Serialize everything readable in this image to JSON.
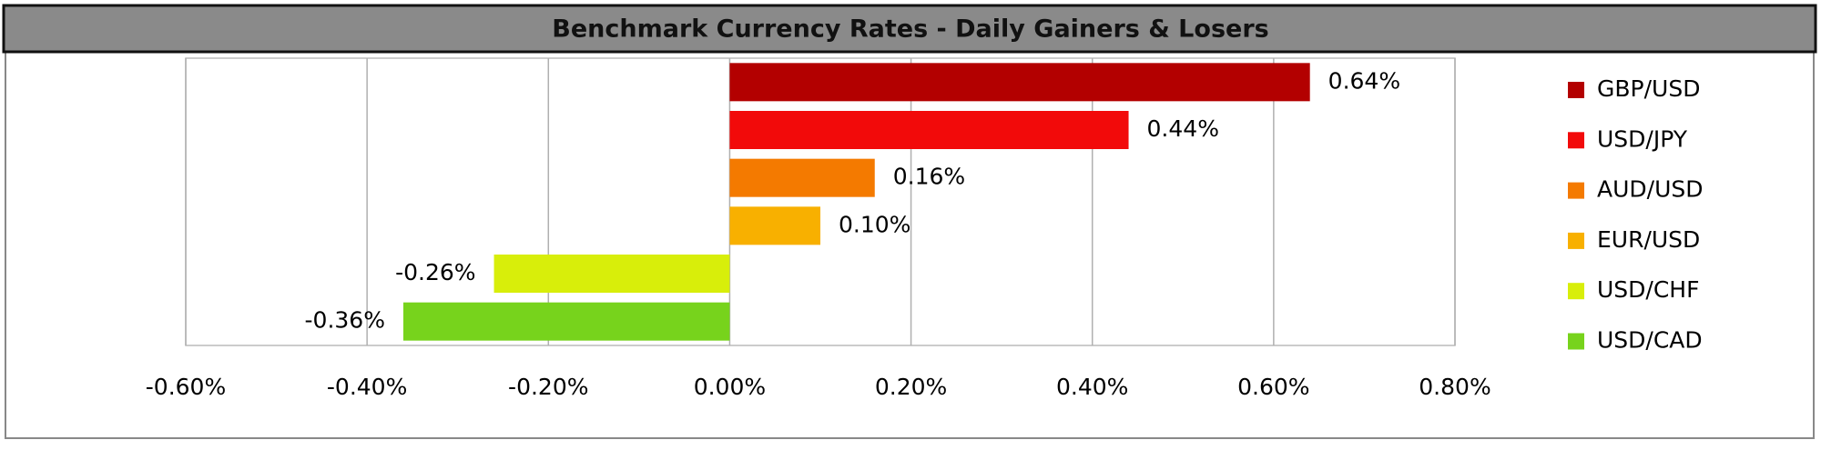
{
  "chart_data": {
    "type": "hbar",
    "title": "Benchmark Currency Rates - Daily Gainers & Losers",
    "series": [
      {
        "name": "GBP/USD",
        "color": "#b30000",
        "values": [
          0.64
        ],
        "value_labels": [
          "0.64%"
        ]
      },
      {
        "name": "USD/JPY",
        "color": "#f20a0a",
        "values": [
          0.44
        ],
        "value_labels": [
          "0.44%"
        ]
      },
      {
        "name": "AUD/USD",
        "color": "#f47a00",
        "values": [
          0.16
        ],
        "value_labels": [
          "0.16%"
        ]
      },
      {
        "name": "EUR/USD",
        "color": "#f8b000",
        "values": [
          0.1
        ],
        "value_labels": [
          "0.10%"
        ]
      },
      {
        "name": "USD/CHF",
        "color": "#d8ee0a",
        "values": [
          -0.26
        ],
        "value_labels": [
          "-0.26%"
        ]
      },
      {
        "name": "USD/CAD",
        "color": "#77d31c",
        "values": [
          -0.36
        ],
        "value_labels": [
          "-0.36%"
        ]
      }
    ],
    "xlim": [
      -0.6,
      0.8
    ],
    "xticks": [
      {
        "value": -0.6,
        "label": "-0.60%"
      },
      {
        "value": -0.4,
        "label": "-0.40%"
      },
      {
        "value": -0.2,
        "label": "-0.20%"
      },
      {
        "value": 0,
        "label": "0.00%"
      },
      {
        "value": 0.2,
        "label": "0.20%"
      },
      {
        "value": 0.4,
        "label": "0.40%"
      },
      {
        "value": 0.6,
        "label": "0.60%"
      },
      {
        "value": 0.8,
        "label": "0.80%"
      }
    ],
    "grid": true,
    "legend": "right"
  }
}
